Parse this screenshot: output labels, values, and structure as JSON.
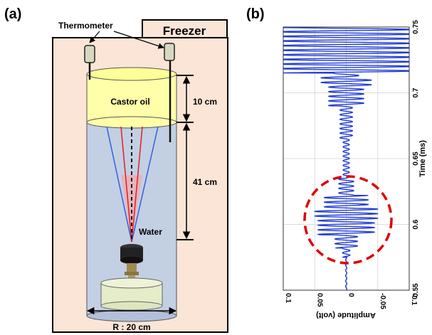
{
  "panel_a": {
    "label": "(a)",
    "thermometer_label": "Thermometer",
    "freezer_label": "Freezer",
    "castor_oil_label": "Castor oil",
    "water_label": "Water",
    "dim_top": "10 cm",
    "dim_bottom": "41 cm",
    "radius_label": "R : 20 cm",
    "colors": {
      "freezer_fill": "#fbe5d6",
      "oil_fill": "#ffffaa",
      "water_fill": "#c3cfe3",
      "base_fill": "#e4ecc8",
      "beam_blue": "#3060e0",
      "beam_red": "#e02020"
    }
  },
  "panel_b": {
    "label": "(b)",
    "circle_color": "#e00000",
    "chart_data": {
      "type": "line",
      "title": "",
      "xlabel": "Amplitude (volt)",
      "ylabel": "Time (ms)",
      "xlim": [
        0.1,
        -0.1
      ],
      "ylim": [
        0.55,
        0.75
      ],
      "x_ticks": [
        "0.1",
        "0.05",
        "0",
        "-0.05",
        "-0.1"
      ],
      "y_ticks": [
        "0.55",
        "0.6",
        "0.65",
        "0.7",
        "0.75"
      ],
      "grid": true,
      "line_color": "#1f3ad6",
      "series": [
        {
          "segments": [
            {
              "t_start": 0.55,
              "t_end": 0.575,
              "amplitude": 0.001,
              "period": 0.004
            },
            {
              "t_start": 0.575,
              "t_end": 0.582,
              "amplitude": 0.006,
              "period": 0.0035
            },
            {
              "t_start": 0.582,
              "t_end": 0.592,
              "amplitude": 0.018,
              "period": 0.0035
            },
            {
              "t_start": 0.592,
              "t_end": 0.604,
              "amplitude": 0.045,
              "period": 0.0035
            },
            {
              "t_start": 0.604,
              "t_end": 0.612,
              "amplitude": 0.05,
              "period": 0.0035
            },
            {
              "t_start": 0.612,
              "t_end": 0.622,
              "amplitude": 0.035,
              "period": 0.0035
            },
            {
              "t_start": 0.622,
              "t_end": 0.635,
              "amplitude": 0.012,
              "period": 0.0035
            },
            {
              "t_start": 0.635,
              "t_end": 0.665,
              "amplitude": 0.005,
              "period": 0.0035
            },
            {
              "t_start": 0.665,
              "t_end": 0.69,
              "amplitude": 0.01,
              "period": 0.0035
            },
            {
              "t_start": 0.69,
              "t_end": 0.705,
              "amplitude": 0.028,
              "period": 0.0035
            },
            {
              "t_start": 0.705,
              "t_end": 0.712,
              "amplitude": 0.04,
              "period": 0.0035
            },
            {
              "t_start": 0.712,
              "t_end": 0.715,
              "amplitude": 0.02,
              "period": 0.0035
            },
            {
              "t_start": 0.715,
              "t_end": 0.75,
              "amplitude": 0.11,
              "period": 0.0035
            }
          ]
        }
      ]
    }
  }
}
